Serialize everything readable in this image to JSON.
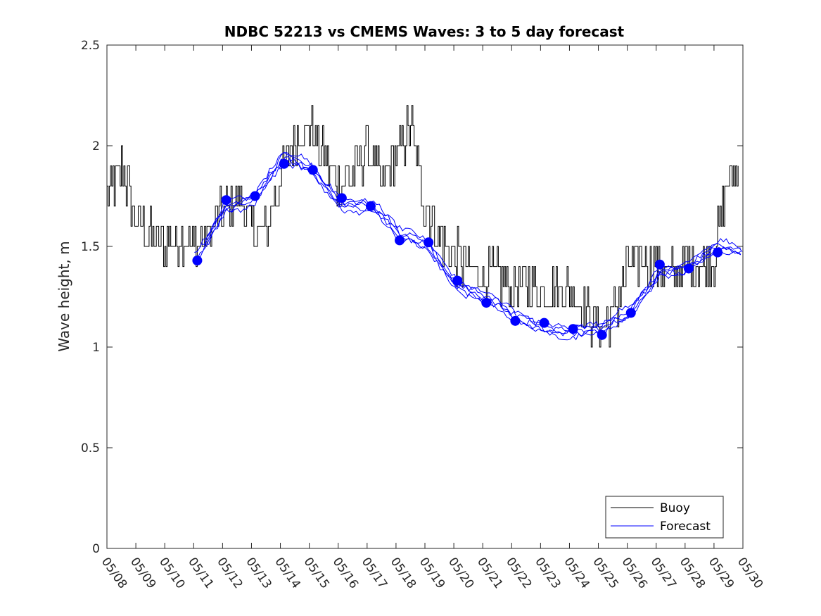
{
  "chart_data": {
    "type": "line",
    "title": "NDBC 52213 vs CMEMS Waves: 3 to 5 day forecast",
    "ylabel": "Wave height, m",
    "xlabel": "",
    "ylim": [
      0,
      2.5
    ],
    "yticks": [
      0,
      0.5,
      1,
      1.5,
      2,
      2.5
    ],
    "ytick_labels": [
      "0",
      "0.5",
      "1",
      "1.5",
      "2",
      "2.5"
    ],
    "xlim": [
      "05/08",
      "05/30"
    ],
    "xtick_labels": [
      "05/08",
      "05/09",
      "05/10",
      "05/11",
      "05/12",
      "05/13",
      "05/14",
      "05/15",
      "05/16",
      "05/17",
      "05/18",
      "05/19",
      "05/20",
      "05/21",
      "05/22",
      "05/23",
      "05/24",
      "05/25",
      "05/26",
      "05/27",
      "05/28",
      "05/29",
      "05/30"
    ],
    "grid": false,
    "legend_position": "bottom-right",
    "legend": [
      {
        "label": "Buoy",
        "color": "#000000"
      },
      {
        "label": "Forecast",
        "color": "#0000ff"
      }
    ],
    "colors": {
      "buoy": "#000000",
      "forecast": "#0000ff"
    },
    "series": [
      {
        "name": "Buoy",
        "x": [
          "05/08",
          "05/08 12:00",
          "05/09",
          "05/09 12:00",
          "05/10",
          "05/10 12:00",
          "05/11",
          "05/11 12:00",
          "05/12",
          "05/12 12:00",
          "05/13",
          "05/13 12:00",
          "05/14",
          "05/14 12:00",
          "05/15",
          "05/15 12:00",
          "05/16",
          "05/16 12:00",
          "05/17",
          "05/17 12:00",
          "05/18",
          "05/18 12:00",
          "05/19",
          "05/19 12:00",
          "05/20",
          "05/20 12:00",
          "05/21",
          "05/21 12:00",
          "05/22",
          "05/22 12:00",
          "05/23",
          "05/23 12:00",
          "05/24",
          "05/24 12:00",
          "05/25",
          "05/25 12:00",
          "05/26",
          "05/26 12:00",
          "05/27",
          "05/27 12:00",
          "05/28",
          "05/28 12:00",
          "05/29",
          "05/29 12:00"
        ],
        "y": [
          1.75,
          1.9,
          1.65,
          1.55,
          1.5,
          1.55,
          1.5,
          1.55,
          1.65,
          1.75,
          1.6,
          1.55,
          1.85,
          2.05,
          2.1,
          1.95,
          1.8,
          1.85,
          2.0,
          1.8,
          1.95,
          2.1,
          1.7,
          1.55,
          1.45,
          1.4,
          1.35,
          1.35,
          1.3,
          1.3,
          1.3,
          1.3,
          1.3,
          1.2,
          1.1,
          1.15,
          1.4,
          1.45,
          1.4,
          1.38,
          1.4,
          1.42,
          1.45,
          1.85
        ]
      },
      {
        "name": "Forecast",
        "x": [
          "05/11 03:00",
          "05/12 03:00",
          "05/13 03:00",
          "05/14 03:00",
          "05/15 03:00",
          "05/16 03:00",
          "05/17 03:00",
          "05/18 03:00",
          "05/19 03:00",
          "05/20 03:00",
          "05/21 03:00",
          "05/22 03:00",
          "05/23 03:00",
          "05/24 03:00",
          "05/25 03:00",
          "05/26 03:00",
          "05/27 03:00",
          "05/28 03:00",
          "05/29 03:00"
        ],
        "y": [
          1.43,
          1.73,
          1.75,
          1.91,
          1.88,
          1.74,
          1.7,
          1.53,
          1.52,
          1.33,
          1.22,
          1.13,
          1.12,
          1.09,
          1.06,
          1.17,
          1.41,
          1.39,
          1.47
        ]
      }
    ]
  }
}
